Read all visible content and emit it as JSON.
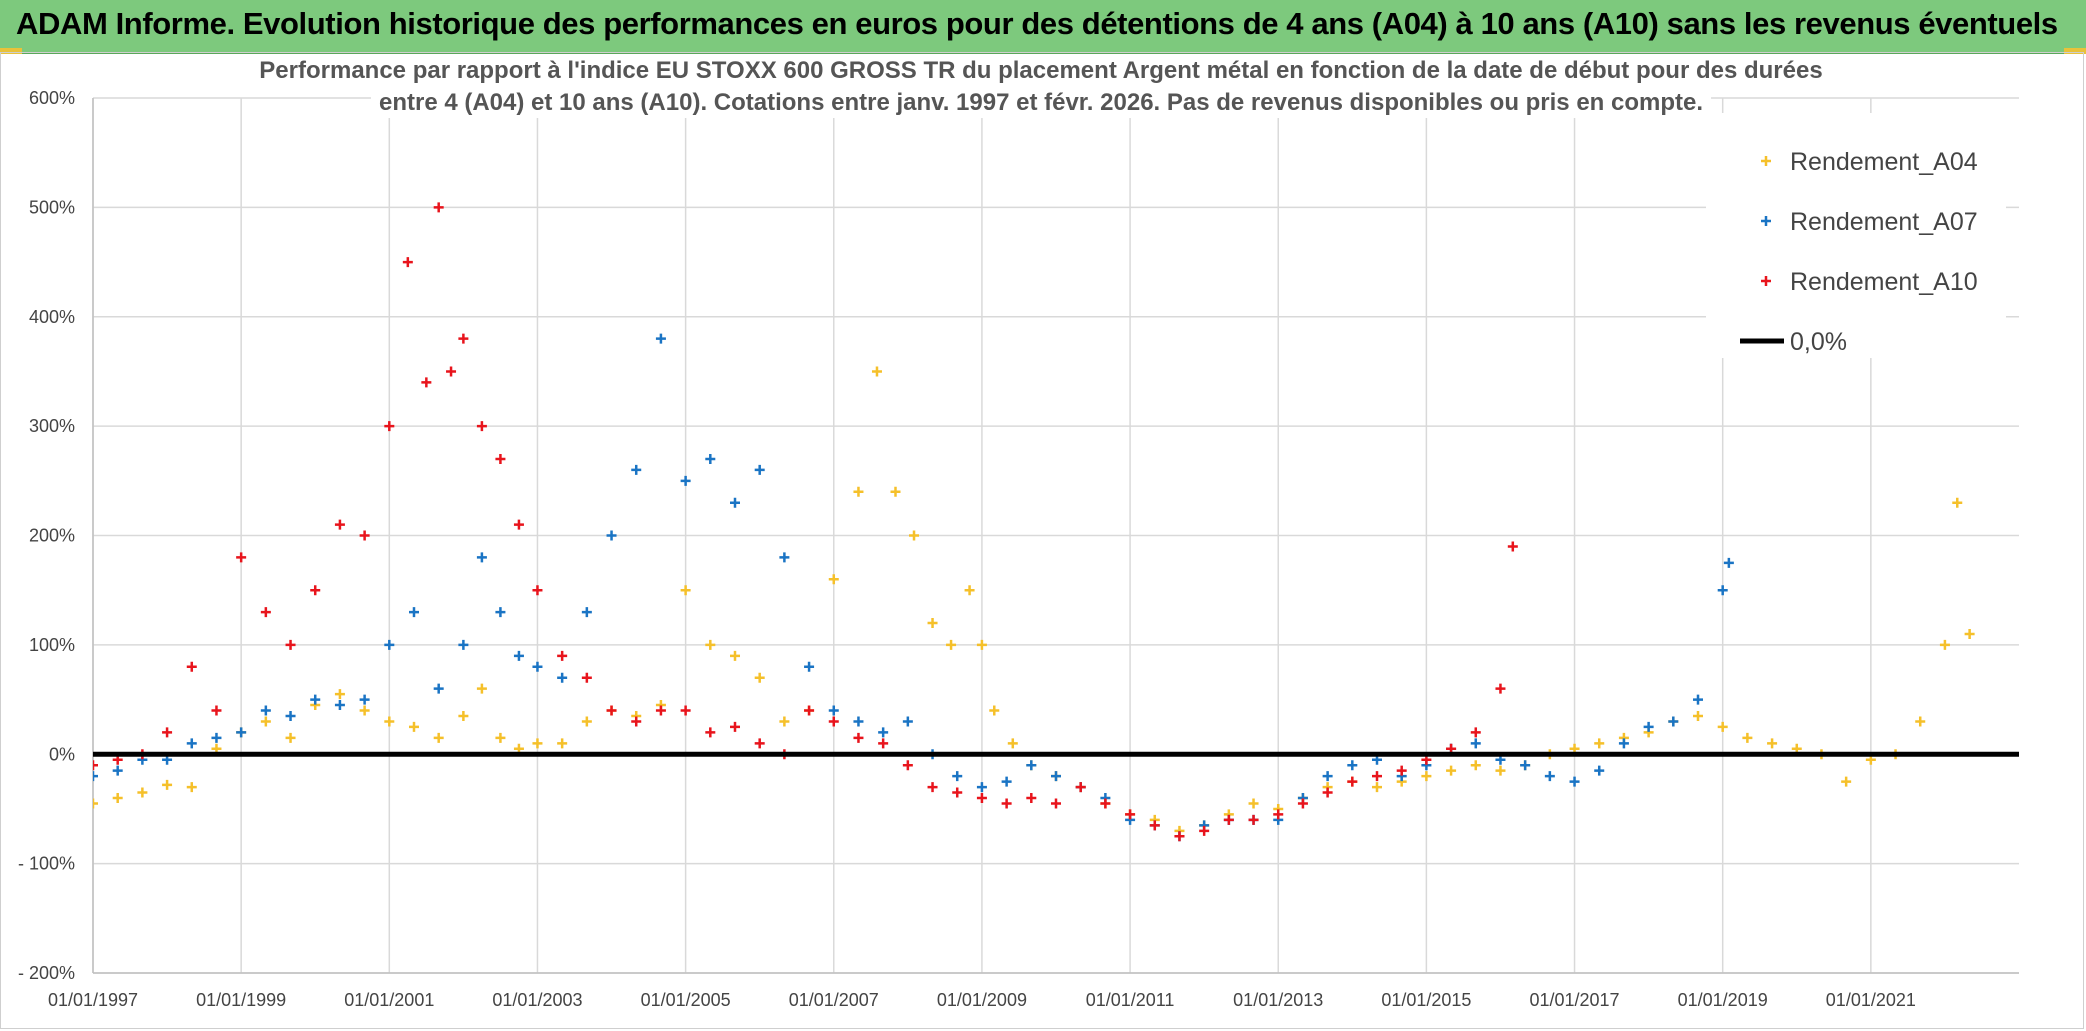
{
  "banner": {
    "title": "ADAM Informe. Evolution historique des performances en euros pour des détentions de 4 ans (A04) à 10 ans (A10) sans les revenus éventuels"
  },
  "colors": {
    "banner": "#7dc97d",
    "accent": "#e8c23a",
    "A04": "#f5c02a",
    "A07": "#1a74c4",
    "A10": "#e8141c",
    "zero_line": "#000000"
  },
  "chart_data": {
    "type": "scatter",
    "title": "Performance par rapport à l'indice EU STOXX 600 GROSS TR  du placement Argent métal en fonction de la date de début pour des durées entre 4 (A04) et 10 ans (A10). Cotations entre janv. 1997 et févr. 2026. Pas de revenus disponibles ou pris en compte.",
    "title_lines": [
      "Performance par rapport à l'indice EU STOXX 600 GROSS TR  du placement Argent métal en fonction de la date de début pour des durées",
      "entre 4 (A04) et 10 ans (A10). Cotations entre janv. 1997 et févr. 2026. Pas de revenus disponibles ou pris en compte."
    ],
    "xlabel": "",
    "ylabel": "",
    "x_range": [
      "1997-01-01",
      "2023-01-01"
    ],
    "ylim": [
      -200,
      600
    ],
    "y_ticks": [
      -200,
      -100,
      0,
      100,
      200,
      300,
      400,
      500,
      600
    ],
    "y_tick_labels": [
      "- 200%",
      "- 100%",
      "0%",
      "100%",
      "200%",
      "300%",
      "400%",
      "500%",
      "600%"
    ],
    "x_ticks": [
      1997,
      1999,
      2001,
      2003,
      2005,
      2007,
      2009,
      2011,
      2013,
      2015,
      2017,
      2019,
      2021
    ],
    "x_tick_labels": [
      "01/01/1997",
      "01/01/1999",
      "01/01/2001",
      "01/01/2003",
      "01/01/2005",
      "01/01/2007",
      "01/01/2009",
      "01/01/2011",
      "01/01/2013",
      "01/01/2015",
      "01/01/2017",
      "01/01/2019",
      "01/01/2021"
    ],
    "grid": true,
    "legend_position": "top-right",
    "marker": "+",
    "series": [
      {
        "name": "Rendement_A04",
        "color": "#f5c02a",
        "points": [
          [
            "1997-01",
            -45
          ],
          [
            "1997-05",
            -40
          ],
          [
            "1997-09",
            -35
          ],
          [
            "1998-01",
            -28
          ],
          [
            "1998-05",
            -30
          ],
          [
            "1998-09",
            5
          ],
          [
            "1999-01",
            20
          ],
          [
            "1999-05",
            30
          ],
          [
            "1999-09",
            15
          ],
          [
            "2000-01",
            45
          ],
          [
            "2000-05",
            55
          ],
          [
            "2000-09",
            40
          ],
          [
            "2001-01",
            30
          ],
          [
            "2001-05",
            25
          ],
          [
            "2001-09",
            15
          ],
          [
            "2002-01",
            35
          ],
          [
            "2002-04",
            60
          ],
          [
            "2002-07",
            15
          ],
          [
            "2002-10",
            5
          ],
          [
            "2003-01",
            10
          ],
          [
            "2003-05",
            10
          ],
          [
            "2003-09",
            30
          ],
          [
            "2004-01",
            40
          ],
          [
            "2004-05",
            35
          ],
          [
            "2004-09",
            45
          ],
          [
            "2005-01",
            150
          ],
          [
            "2005-05",
            100
          ],
          [
            "2005-09",
            90
          ],
          [
            "2006-01",
            70
          ],
          [
            "2006-05",
            30
          ],
          [
            "2006-09",
            40
          ],
          [
            "2007-01",
            160
          ],
          [
            "2007-05",
            240
          ],
          [
            "2007-08",
            350
          ],
          [
            "2007-11",
            240
          ],
          [
            "2008-02",
            200
          ],
          [
            "2008-05",
            120
          ],
          [
            "2008-08",
            100
          ],
          [
            "2008-11",
            150
          ],
          [
            "2009-01",
            100
          ],
          [
            "2009-03",
            40
          ],
          [
            "2009-06",
            10
          ],
          [
            "2009-09",
            -10
          ],
          [
            "2010-01",
            -20
          ],
          [
            "2010-05",
            -30
          ],
          [
            "2010-09",
            -45
          ],
          [
            "2011-01",
            -55
          ],
          [
            "2011-05",
            -60
          ],
          [
            "2011-09",
            -70
          ],
          [
            "2012-01",
            -65
          ],
          [
            "2012-05",
            -55
          ],
          [
            "2012-09",
            -45
          ],
          [
            "2013-01",
            -50
          ],
          [
            "2013-05",
            -40
          ],
          [
            "2013-09",
            -30
          ],
          [
            "2014-01",
            -25
          ],
          [
            "2014-05",
            -30
          ],
          [
            "2014-09",
            -25
          ],
          [
            "2015-01",
            -20
          ],
          [
            "2015-05",
            -15
          ],
          [
            "2015-09",
            -10
          ],
          [
            "2016-01",
            -15
          ],
          [
            "2016-05",
            -10
          ],
          [
            "2016-09",
            0
          ],
          [
            "2017-01",
            5
          ],
          [
            "2017-05",
            10
          ],
          [
            "2017-09",
            15
          ],
          [
            "2018-01",
            20
          ],
          [
            "2018-05",
            30
          ],
          [
            "2018-09",
            35
          ],
          [
            "2019-01",
            25
          ],
          [
            "2019-05",
            15
          ],
          [
            "2019-09",
            10
          ],
          [
            "2020-01",
            5
          ],
          [
            "2020-05",
            0
          ],
          [
            "2020-09",
            -25
          ],
          [
            "2021-01",
            -5
          ],
          [
            "2021-05",
            0
          ],
          [
            "2021-09",
            30
          ],
          [
            "2022-01",
            100
          ],
          [
            "2022-03",
            230
          ],
          [
            "2022-05",
            110
          ]
        ]
      },
      {
        "name": "Rendement_A07",
        "color": "#1a74c4",
        "points": [
          [
            "1997-01",
            -20
          ],
          [
            "1997-05",
            -15
          ],
          [
            "1997-09",
            -5
          ],
          [
            "1998-01",
            -5
          ],
          [
            "1998-05",
            10
          ],
          [
            "1998-09",
            15
          ],
          [
            "1999-01",
            20
          ],
          [
            "1999-05",
            40
          ],
          [
            "1999-09",
            35
          ],
          [
            "2000-01",
            50
          ],
          [
            "2000-05",
            45
          ],
          [
            "2000-09",
            50
          ],
          [
            "2001-01",
            100
          ],
          [
            "2001-05",
            130
          ],
          [
            "2001-09",
            60
          ],
          [
            "2002-01",
            100
          ],
          [
            "2002-04",
            180
          ],
          [
            "2002-07",
            130
          ],
          [
            "2002-10",
            90
          ],
          [
            "2003-01",
            80
          ],
          [
            "2003-05",
            70
          ],
          [
            "2003-09",
            130
          ],
          [
            "2004-01",
            200
          ],
          [
            "2004-05",
            260
          ],
          [
            "2004-09",
            380
          ],
          [
            "2005-01",
            250
          ],
          [
            "2005-05",
            270
          ],
          [
            "2005-09",
            230
          ],
          [
            "2006-01",
            260
          ],
          [
            "2006-05",
            180
          ],
          [
            "2006-09",
            80
          ],
          [
            "2007-01",
            40
          ],
          [
            "2007-05",
            30
          ],
          [
            "2007-09",
            20
          ],
          [
            "2008-01",
            30
          ],
          [
            "2008-05",
            0
          ],
          [
            "2008-09",
            -20
          ],
          [
            "2009-01",
            -30
          ],
          [
            "2009-05",
            -25
          ],
          [
            "2009-09",
            -10
          ],
          [
            "2010-01",
            -20
          ],
          [
            "2010-05",
            -30
          ],
          [
            "2010-09",
            -40
          ],
          [
            "2011-01",
            -60
          ],
          [
            "2011-05",
            -65
          ],
          [
            "2011-09",
            -75
          ],
          [
            "2012-01",
            -65
          ],
          [
            "2012-05",
            -60
          ],
          [
            "2012-09",
            -60
          ],
          [
            "2013-01",
            -60
          ],
          [
            "2013-05",
            -40
          ],
          [
            "2013-09",
            -20
          ],
          [
            "2014-01",
            -10
          ],
          [
            "2014-05",
            -5
          ],
          [
            "2014-09",
            -20
          ],
          [
            "2015-01",
            -10
          ],
          [
            "2015-05",
            5
          ],
          [
            "2015-09",
            10
          ],
          [
            "2016-01",
            -5
          ],
          [
            "2016-05",
            -10
          ],
          [
            "2016-09",
            -20
          ],
          [
            "2017-01",
            -25
          ],
          [
            "2017-05",
            -15
          ],
          [
            "2017-09",
            10
          ],
          [
            "2018-01",
            25
          ],
          [
            "2018-05",
            30
          ],
          [
            "2018-09",
            50
          ],
          [
            "2019-01",
            150
          ],
          [
            "2019-02",
            175
          ]
        ]
      },
      {
        "name": "Rendement_A10",
        "color": "#e8141c",
        "points": [
          [
            "1997-01",
            -10
          ],
          [
            "1997-05",
            -5
          ],
          [
            "1997-09",
            0
          ],
          [
            "1998-01",
            20
          ],
          [
            "1998-05",
            80
          ],
          [
            "1998-09",
            40
          ],
          [
            "1999-01",
            180
          ],
          [
            "1999-05",
            130
          ],
          [
            "1999-09",
            100
          ],
          [
            "2000-01",
            150
          ],
          [
            "2000-05",
            210
          ],
          [
            "2000-09",
            200
          ],
          [
            "2001-01",
            300
          ],
          [
            "2001-04",
            450
          ],
          [
            "2001-07",
            340
          ],
          [
            "2001-09",
            500
          ],
          [
            "2001-11",
            350
          ],
          [
            "2002-01",
            380
          ],
          [
            "2002-04",
            300
          ],
          [
            "2002-07",
            270
          ],
          [
            "2002-10",
            210
          ],
          [
            "2003-01",
            150
          ],
          [
            "2003-05",
            90
          ],
          [
            "2003-09",
            70
          ],
          [
            "2004-01",
            40
          ],
          [
            "2004-05",
            30
          ],
          [
            "2004-09",
            40
          ],
          [
            "2005-01",
            40
          ],
          [
            "2005-05",
            20
          ],
          [
            "2005-09",
            25
          ],
          [
            "2006-01",
            10
          ],
          [
            "2006-05",
            0
          ],
          [
            "2006-09",
            40
          ],
          [
            "2007-01",
            30
          ],
          [
            "2007-05",
            15
          ],
          [
            "2007-09",
            10
          ],
          [
            "2008-01",
            -10
          ],
          [
            "2008-05",
            -30
          ],
          [
            "2008-09",
            -35
          ],
          [
            "2009-01",
            -40
          ],
          [
            "2009-05",
            -45
          ],
          [
            "2009-09",
            -40
          ],
          [
            "2010-01",
            -45
          ],
          [
            "2010-05",
            -30
          ],
          [
            "2010-09",
            -45
          ],
          [
            "2011-01",
            -55
          ],
          [
            "2011-05",
            -65
          ],
          [
            "2011-09",
            -75
          ],
          [
            "2012-01",
            -70
          ],
          [
            "2012-05",
            -60
          ],
          [
            "2012-09",
            -60
          ],
          [
            "2013-01",
            -55
          ],
          [
            "2013-05",
            -45
          ],
          [
            "2013-09",
            -35
          ],
          [
            "2014-01",
            -25
          ],
          [
            "2014-05",
            -20
          ],
          [
            "2014-09",
            -15
          ],
          [
            "2015-01",
            -5
          ],
          [
            "2015-05",
            5
          ],
          [
            "2015-09",
            20
          ],
          [
            "2016-01",
            60
          ],
          [
            "2016-03",
            190
          ]
        ]
      },
      {
        "name": "0,0%",
        "color": "#000000",
        "style": "line",
        "points": [
          [
            "1997-01",
            0
          ],
          [
            "2023-01",
            0
          ]
        ]
      }
    ],
    "legend": [
      {
        "label": "Rendement_A04",
        "color": "#f5c02a",
        "marker": "+"
      },
      {
        "label": "Rendement_A07",
        "color": "#1a74c4",
        "marker": "+"
      },
      {
        "label": "Rendement_A10",
        "color": "#e8141c",
        "marker": "+"
      },
      {
        "label": "0,0%",
        "color": "#000000",
        "marker": "line"
      }
    ]
  }
}
